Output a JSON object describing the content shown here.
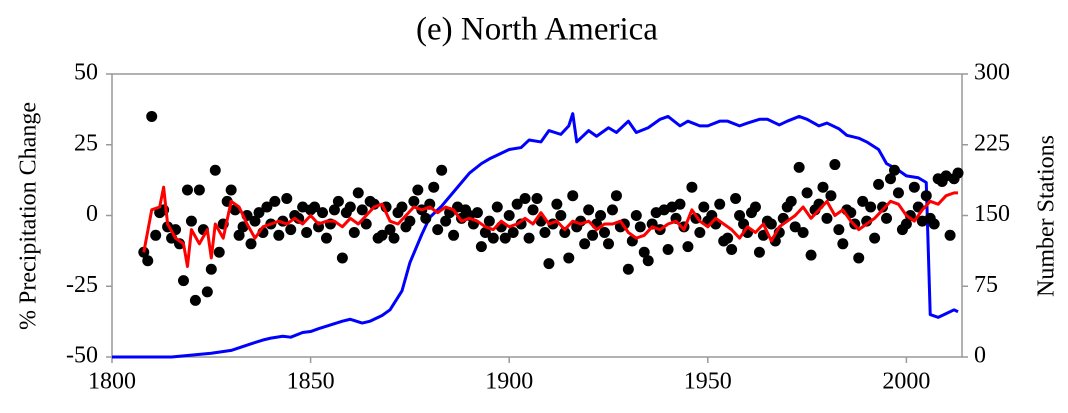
{
  "chart_data": {
    "type": "combo",
    "title": "(e) North America",
    "y_label": "% Precipitation Change",
    "y2_label": "Number Stations",
    "xlim": [
      1800,
      2014
    ],
    "xticks": [
      1800,
      1850,
      1900,
      1950,
      2000
    ],
    "ylim": [
      -50,
      50
    ],
    "yticks": [
      -50,
      -25,
      0,
      25,
      50
    ],
    "y2lim": [
      0,
      300
    ],
    "y2ticks": [
      0,
      75,
      150,
      225,
      300
    ],
    "series": [
      {
        "type": "scatter",
        "color": "#000000",
        "x": [
          1808,
          1809,
          1810,
          1811,
          1812,
          1813,
          1814,
          1815,
          1816,
          1817,
          1818,
          1819,
          1820,
          1821,
          1822,
          1823,
          1824,
          1825,
          1826,
          1827,
          1828,
          1829,
          1830,
          1831,
          1832,
          1833,
          1834,
          1835,
          1836,
          1837,
          1838,
          1839,
          1840,
          1841,
          1842,
          1843,
          1844,
          1845,
          1846,
          1847,
          1848,
          1849,
          1850,
          1851,
          1852,
          1853,
          1854,
          1855,
          1856,
          1857,
          1858,
          1859,
          1860,
          1861,
          1862,
          1863,
          1864,
          1865,
          1866,
          1867,
          1868,
          1869,
          1870,
          1871,
          1872,
          1873,
          1874,
          1875,
          1876,
          1877,
          1878,
          1879,
          1880,
          1881,
          1882,
          1883,
          1884,
          1885,
          1886,
          1887,
          1888,
          1889,
          1890,
          1891,
          1892,
          1893,
          1894,
          1895,
          1896,
          1897,
          1898,
          1899,
          1900,
          1901,
          1902,
          1903,
          1904,
          1905,
          1906,
          1907,
          1908,
          1909,
          1910,
          1911,
          1912,
          1913,
          1914,
          1915,
          1916,
          1917,
          1918,
          1919,
          1920,
          1921,
          1922,
          1923,
          1924,
          1925,
          1926,
          1927,
          1928,
          1929,
          1930,
          1931,
          1932,
          1933,
          1934,
          1935,
          1936,
          1937,
          1938,
          1939,
          1940,
          1941,
          1942,
          1943,
          1944,
          1945,
          1946,
          1947,
          1948,
          1949,
          1950,
          1951,
          1952,
          1953,
          1954,
          1955,
          1956,
          1957,
          1958,
          1959,
          1960,
          1961,
          1962,
          1963,
          1964,
          1965,
          1966,
          1967,
          1968,
          1969,
          1970,
          1971,
          1972,
          1973,
          1974,
          1975,
          1976,
          1977,
          1978,
          1979,
          1980,
          1981,
          1982,
          1983,
          1984,
          1985,
          1986,
          1987,
          1988,
          1989,
          1990,
          1991,
          1992,
          1993,
          1994,
          1995,
          1996,
          1997,
          1998,
          1999,
          2000,
          2001,
          2002,
          2003,
          2004,
          2005,
          2006,
          2007,
          2008,
          2009,
          2010,
          2011,
          2012,
          2013
        ],
        "values": [
          -13,
          -16,
          35,
          -7,
          1,
          2,
          -4,
          -8,
          -5,
          -10,
          -23,
          9,
          -2,
          -30,
          9,
          -5,
          -27,
          -19,
          16,
          -13,
          -3,
          5,
          9,
          2,
          -7,
          -4,
          0,
          -10,
          -2,
          1,
          -6,
          3,
          -3,
          5,
          -7,
          -2,
          6,
          -5,
          0,
          -1,
          3,
          -6,
          2,
          3,
          -4,
          1,
          -8,
          -3,
          2,
          5,
          -15,
          1,
          3,
          -6,
          8,
          2,
          -3,
          5,
          4,
          -8,
          -7,
          3,
          -5,
          -8,
          1,
          3,
          -4,
          -2,
          5,
          9,
          2,
          -1,
          4,
          10,
          -5,
          16,
          -2,
          1,
          -7,
          3,
          -1,
          2,
          0,
          -3,
          1,
          -11,
          -6,
          -2,
          -8,
          3,
          -4,
          -8,
          0,
          -6,
          4,
          -3,
          6,
          -8,
          2,
          6,
          -2,
          -6,
          -17,
          -3,
          4,
          0,
          -6,
          -15,
          7,
          -4,
          -2,
          -10,
          2,
          -7,
          -3,
          0,
          -6,
          -10,
          2,
          7,
          -4,
          -3,
          -19,
          -9,
          0,
          -4,
          -13,
          -16,
          -3,
          1,
          -5,
          2,
          -12,
          3,
          -1,
          4,
          -4,
          -11,
          10,
          -1,
          -6,
          3,
          -2,
          0,
          -3,
          4,
          -9,
          -8,
          -12,
          6,
          0,
          -3,
          -6,
          1,
          3,
          -13,
          -7,
          -2,
          -3,
          -9,
          -6,
          -1,
          3,
          5,
          -4,
          17,
          -6,
          8,
          -14,
          2,
          4,
          10,
          -1,
          7,
          18,
          -5,
          -10,
          2,
          1,
          -3,
          -15,
          5,
          -2,
          3,
          -8,
          11,
          3,
          -1,
          13,
          16,
          8,
          -5,
          -3,
          0,
          10,
          3,
          -2,
          7,
          -1,
          -3,
          13,
          12,
          14,
          -7,
          13,
          15
        ]
      },
      {
        "type": "line",
        "color": "#ff0000",
        "x": [
          1808,
          1810,
          1812,
          1813,
          1814,
          1816,
          1818,
          1819,
          1820,
          1822,
          1824,
          1825,
          1826,
          1828,
          1830,
          1832,
          1834,
          1836,
          1838,
          1840,
          1842,
          1844,
          1846,
          1848,
          1850,
          1852,
          1854,
          1856,
          1858,
          1860,
          1862,
          1864,
          1866,
          1868,
          1870,
          1872,
          1874,
          1876,
          1878,
          1880,
          1882,
          1884,
          1886,
          1888,
          1890,
          1892,
          1894,
          1896,
          1898,
          1900,
          1902,
          1904,
          1906,
          1908,
          1910,
          1912,
          1914,
          1916,
          1918,
          1920,
          1922,
          1924,
          1926,
          1928,
          1930,
          1932,
          1934,
          1936,
          1938,
          1940,
          1942,
          1944,
          1946,
          1948,
          1950,
          1952,
          1954,
          1956,
          1958,
          1960,
          1962,
          1964,
          1966,
          1968,
          1970,
          1972,
          1974,
          1976,
          1978,
          1980,
          1982,
          1984,
          1986,
          1988,
          1990,
          1992,
          1994,
          1996,
          1998,
          2000,
          2002,
          2004,
          2006,
          2008,
          2010,
          2012,
          2013
        ],
        "values": [
          -13,
          2,
          3,
          10,
          -3,
          -8,
          -10,
          -18,
          -5,
          -10,
          -5,
          -15,
          -3,
          -8,
          5,
          3,
          -3,
          -8,
          -4,
          -3,
          -2,
          -3,
          -1,
          -3,
          0,
          -3,
          -2,
          -2,
          -4,
          -1,
          -3,
          0,
          3,
          4,
          -2,
          -3,
          0,
          3,
          2,
          3,
          1,
          3,
          2,
          -2,
          -1,
          -2,
          -4,
          -5,
          -2,
          -4,
          -3,
          -1,
          -3,
          1,
          -3,
          -2,
          -5,
          -2,
          -3,
          -2,
          -5,
          -3,
          -3,
          -2,
          -6,
          -8,
          -7,
          -4,
          -5,
          -3,
          -2,
          -5,
          2,
          -2,
          -4,
          -1,
          -3,
          -5,
          -8,
          -4,
          -6,
          -3,
          -9,
          -4,
          -2,
          0,
          3,
          -1,
          2,
          5,
          0,
          2,
          -2,
          -5,
          -3,
          -1,
          2,
          5,
          4,
          0,
          -2,
          2,
          5,
          4,
          7,
          8,
          8
        ]
      },
      {
        "type": "line",
        "axis": "y2",
        "color": "#0000ff",
        "x": [
          1800,
          1815,
          1820,
          1825,
          1830,
          1835,
          1838,
          1840,
          1843,
          1845,
          1848,
          1850,
          1852,
          1855,
          1858,
          1860,
          1863,
          1865,
          1868,
          1870,
          1873,
          1875,
          1878,
          1880,
          1883,
          1885,
          1888,
          1890,
          1893,
          1895,
          1898,
          1900,
          1903,
          1905,
          1908,
          1910,
          1913,
          1915,
          1916,
          1917,
          1920,
          1922,
          1925,
          1927,
          1930,
          1932,
          1935,
          1938,
          1940,
          1943,
          1945,
          1948,
          1950,
          1953,
          1955,
          1958,
          1960,
          1963,
          1965,
          1968,
          1970,
          1973,
          1975,
          1978,
          1980,
          1983,
          1985,
          1988,
          1990,
          1993,
          1995,
          1998,
          2000,
          2003,
          2005,
          2006,
          2008,
          2010,
          2012,
          2013
        ],
        "values": [
          0,
          0,
          2,
          4,
          7,
          14,
          18,
          20,
          22,
          21,
          26,
          27,
          30,
          34,
          38,
          40,
          36,
          38,
          44,
          50,
          70,
          100,
          130,
          148,
          160,
          170,
          185,
          195,
          205,
          210,
          216,
          220,
          222,
          230,
          228,
          240,
          236,
          245,
          258,
          228,
          240,
          234,
          243,
          238,
          250,
          238,
          243,
          252,
          255,
          245,
          250,
          245,
          245,
          250,
          250,
          245,
          248,
          252,
          252,
          246,
          250,
          255,
          252,
          245,
          248,
          242,
          235,
          232,
          228,
          220,
          205,
          198,
          192,
          190,
          185,
          45,
          42,
          46,
          50,
          48
        ]
      }
    ]
  }
}
